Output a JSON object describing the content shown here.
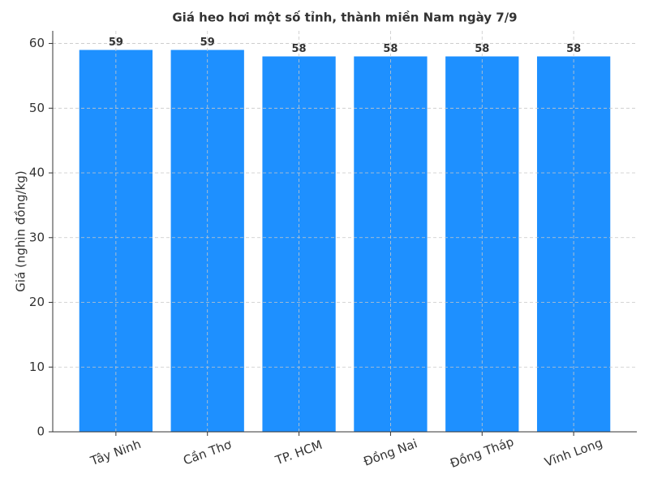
{
  "chart_data": {
    "type": "bar",
    "title": "Giá heo hơi một số tỉnh, thành miền Nam ngày 7/9",
    "y_label": "Giá (nghìn đồng/kg)",
    "categories": [
      "Tây Ninh",
      "Cần Thơ",
      "TP. HCM",
      "Đồng Nai",
      "Đồng Tháp",
      "Vĩnh Long"
    ],
    "values": [
      59,
      59,
      58,
      58,
      58,
      58
    ],
    "color": "#1e90ff",
    "ylim": [
      0,
      61.95
    ],
    "yticks": [
      0,
      10,
      20,
      30,
      40,
      50,
      60
    ],
    "grid": true
  }
}
